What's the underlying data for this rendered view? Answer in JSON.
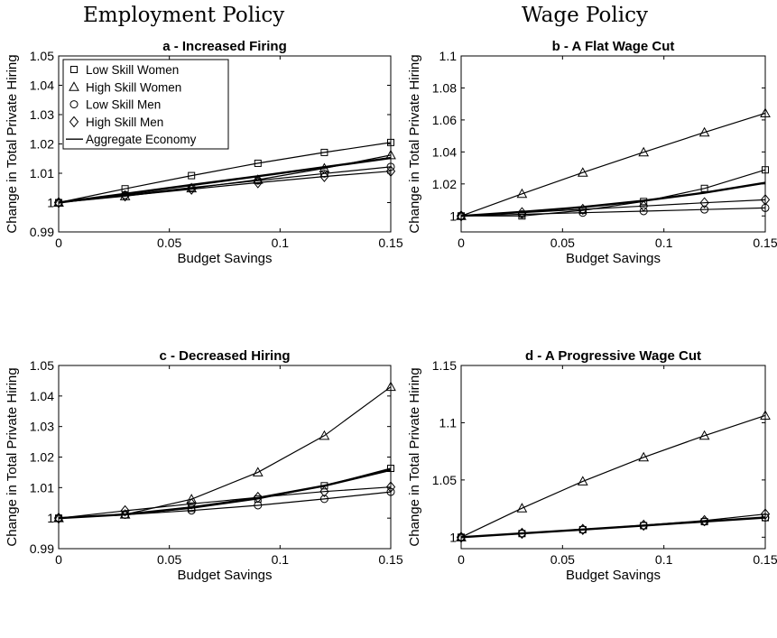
{
  "headings": {
    "left": "Employment Policy",
    "right": "Wage Policy"
  },
  "styles": {
    "line_color": "#000000",
    "background": "#ffffff"
  },
  "chart_data": [
    {
      "type": "line",
      "title": "a - Increased Firing",
      "xlabel": "Budget Savings",
      "ylabel": "Change in Total Private Hiring",
      "xlim": [
        0,
        0.15
      ],
      "ylim": [
        0.99,
        1.05
      ],
      "xticks": [
        0,
        0.05,
        0.1,
        0.15
      ],
      "xtick_labels": [
        "0",
        "0.05",
        "0.1",
        "0.15"
      ],
      "yticks": [
        0.99,
        1.0,
        1.01,
        1.02,
        1.03,
        1.04,
        1.05
      ],
      "ytick_labels": [
        "0.99",
        "1",
        "1.01",
        "1.02",
        "1.03",
        "1.04",
        "1.05"
      ],
      "legend_position": "top-left",
      "x": [
        0,
        0.03,
        0.06,
        0.09,
        0.12,
        0.15
      ],
      "series": [
        {
          "name": "Low Skill Women",
          "marker": "square",
          "values": [
            1.0,
            1.0047,
            1.0092,
            1.0134,
            1.0171,
            1.0205
          ]
        },
        {
          "name": "High Skill Women",
          "marker": "triangle",
          "values": [
            1.0,
            1.0022,
            1.0049,
            1.0078,
            1.0117,
            1.0162
          ]
        },
        {
          "name": "Low Skill Men",
          "marker": "circle",
          "values": [
            1.0,
            1.0026,
            1.0051,
            1.0075,
            1.0099,
            1.0122
          ]
        },
        {
          "name": "High Skill Men",
          "marker": "diamond",
          "values": [
            1.0,
            1.0023,
            1.0046,
            1.0068,
            1.0089,
            1.0107
          ]
        },
        {
          "name": "Aggregate Economy",
          "marker": "none",
          "values": [
            1.0,
            1.003,
            1.006,
            1.009,
            1.0121,
            1.0152
          ]
        }
      ]
    },
    {
      "type": "line",
      "title": "b - A Flat Wage Cut",
      "xlabel": "Budget Savings",
      "ylabel": "Change in Total Private Hiring",
      "xlim": [
        0,
        0.15
      ],
      "ylim": [
        0.99,
        1.1
      ],
      "xticks": [
        0,
        0.05,
        0.1,
        0.15
      ],
      "xtick_labels": [
        "0",
        "0.05",
        "0.1",
        "0.15"
      ],
      "yticks": [
        1.0,
        1.02,
        1.04,
        1.06,
        1.08,
        1.1
      ],
      "ytick_labels": [
        "1",
        "1.02",
        "1.04",
        "1.06",
        "1.08",
        "1.1"
      ],
      "x": [
        0,
        0.03,
        0.06,
        0.09,
        0.12,
        0.15
      ],
      "series": [
        {
          "name": "Low Skill Women",
          "marker": "square",
          "values": [
            1.0,
            1.0,
            1.0035,
            1.009,
            1.0172,
            1.0288
          ]
        },
        {
          "name": "High Skill Women",
          "marker": "triangle",
          "values": [
            1.0,
            1.0138,
            1.0271,
            1.0398,
            1.0522,
            1.0642
          ]
        },
        {
          "name": "Low Skill Men",
          "marker": "circle",
          "values": [
            1.0,
            1.001,
            1.002,
            1.003,
            1.004,
            1.005
          ]
        },
        {
          "name": "High Skill Men",
          "marker": "diamond",
          "values": [
            1.0,
            1.002,
            1.0041,
            1.0062,
            1.0082,
            1.0101
          ]
        },
        {
          "name": "Aggregate Economy",
          "marker": "none",
          "values": [
            1.0,
            1.0025,
            1.0055,
            1.0095,
            1.0145,
            1.0207
          ]
        }
      ]
    },
    {
      "type": "line",
      "title": "c - Decreased Hiring",
      "xlabel": "Budget Savings",
      "ylabel": "Change in Total Private Hiring",
      "xlim": [
        0,
        0.15
      ],
      "ylim": [
        0.99,
        1.05
      ],
      "xticks": [
        0,
        0.05,
        0.1,
        0.15
      ],
      "xtick_labels": [
        "0",
        "0.05",
        "0.1",
        "0.15"
      ],
      "yticks": [
        0.99,
        1.0,
        1.01,
        1.02,
        1.03,
        1.04,
        1.05
      ],
      "ytick_labels": [
        "0.99",
        "1",
        "1.01",
        "1.02",
        "1.03",
        "1.04",
        "1.05"
      ],
      "x": [
        0,
        0.03,
        0.06,
        0.09,
        0.12,
        0.15
      ],
      "series": [
        {
          "name": "Low Skill Women",
          "marker": "square",
          "values": [
            1.0,
            1.0011,
            1.0032,
            1.0063,
            1.0106,
            1.0163
          ]
        },
        {
          "name": "High Skill Women",
          "marker": "triangle",
          "values": [
            1.0,
            1.0012,
            1.0062,
            1.015,
            1.027,
            1.043
          ]
        },
        {
          "name": "Low Skill Men",
          "marker": "circle",
          "values": [
            1.0,
            1.0011,
            1.0025,
            1.0042,
            1.0063,
            1.0086
          ]
        },
        {
          "name": "High Skill Men",
          "marker": "diamond",
          "values": [
            1.0,
            1.0024,
            1.0047,
            1.0068,
            1.0087,
            1.0102
          ]
        },
        {
          "name": "Aggregate Economy",
          "marker": "none",
          "values": [
            1.0,
            1.0012,
            1.0035,
            1.0066,
            1.0106,
            1.0158
          ]
        }
      ]
    },
    {
      "type": "line",
      "title": "d - A Progressive Wage Cut",
      "xlabel": "Budget Savings",
      "ylabel": "Change in Total Private Hiring",
      "xlim": [
        0,
        0.15
      ],
      "ylim": [
        0.99,
        1.15
      ],
      "xticks": [
        0,
        0.05,
        0.1,
        0.15
      ],
      "xtick_labels": [
        "0",
        "0.05",
        "0.1",
        "0.15"
      ],
      "yticks": [
        1.0,
        1.05,
        1.1,
        1.15
      ],
      "ytick_labels": [
        "1",
        "1.05",
        "1.1",
        "1.15"
      ],
      "x": [
        0,
        0.03,
        0.06,
        0.09,
        0.12,
        0.15
      ],
      "series": [
        {
          "name": "Low Skill Women",
          "marker": "square",
          "values": [
            1.0,
            1.0032,
            1.0066,
            1.0101,
            1.0136,
            1.0171
          ]
        },
        {
          "name": "High Skill Women",
          "marker": "triangle",
          "values": [
            1.0,
            1.0253,
            1.0488,
            1.0698,
            1.0887,
            1.1063
          ]
        },
        {
          "name": "Low Skill Men",
          "marker": "circle",
          "values": [
            1.0,
            1.0033,
            1.0067,
            1.0102,
            1.0137,
            1.0172
          ]
        },
        {
          "name": "High Skill Men",
          "marker": "diamond",
          "values": [
            1.0,
            1.0034,
            1.0068,
            1.0105,
            1.0145,
            1.0202
          ]
        },
        {
          "name": "Aggregate Economy",
          "marker": "none",
          "values": [
            1.0,
            1.0033,
            1.0067,
            1.0102,
            1.0137,
            1.0172
          ]
        }
      ]
    }
  ]
}
